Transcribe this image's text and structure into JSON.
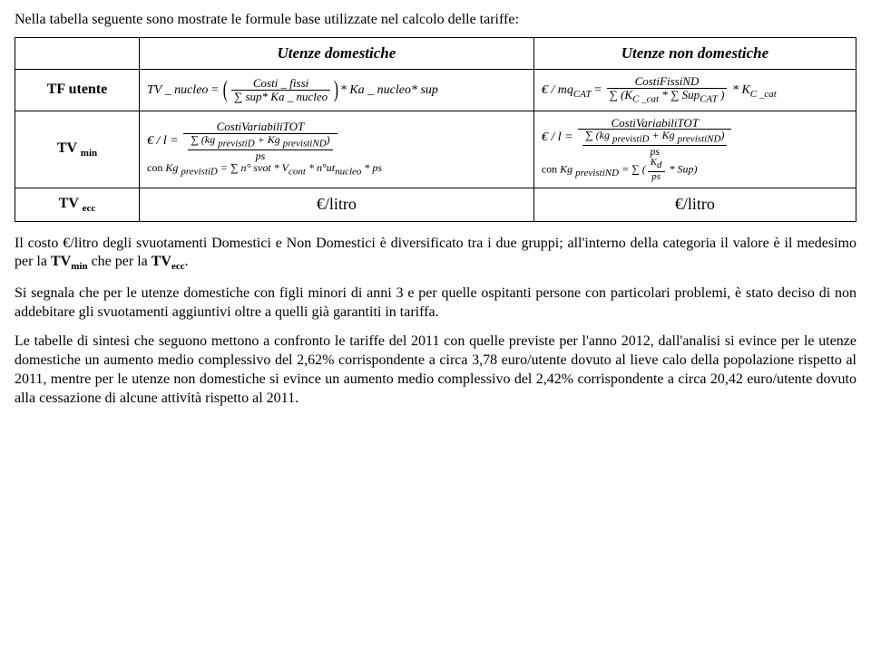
{
  "intro": "Nella tabella seguente sono mostrate le formule base utilizzate nel calcolo delle tariffe:",
  "table": {
    "col1_header": "Utenze domestiche",
    "col2_header": "Utenze non domestiche",
    "rows": {
      "r1_label": "TF utente",
      "r2_label_main": "TV",
      "r2_label_sub": "min",
      "r3_label_main": "TV",
      "r3_label_sub": "ecc",
      "tf_dom": {
        "lhs": "TV _ nucleo",
        "num": "Costi _ fissi",
        "den": "∑ sup* Ka _ nucleo",
        "tail": "* Ka _ nucleo* sup"
      },
      "tf_nd": {
        "lhs": "€ / mq",
        "lhs_sub": "CAT",
        "num": "CostiFissiND",
        "den_a": "∑ (K",
        "den_a_sub": "C _cat",
        "den_b": " * ∑ Sup",
        "den_b_sub": "CAT",
        "den_c": " )",
        "tail": " * K",
        "tail_sub": "C _cat"
      },
      "tv_dom": {
        "lhs": "€ / l =",
        "num": "CostiVariabiliTOT",
        "den": "∑ (kg ",
        "den_sub1": "previstiD",
        "den_mid": " + Kg ",
        "den_sub2": "previstiND",
        "den_end": ")",
        "ps": "ps",
        "con": "con ",
        "kg": "Kg ",
        "kg_sub": "previstiD",
        "eq": " = ∑ n° svot * V",
        "vcont_sub": "cont",
        "tail": " * n°ut",
        "tail_sub": "nucleo",
        "tail_end": " * ps"
      },
      "tv_nd": {
        "lhs": "€ / l =",
        "num": "CostiVariabiliTOT",
        "den": "∑ (kg ",
        "den_sub1": "previstiD",
        "den_mid": " + Kg ",
        "den_sub2": "previstiND",
        "den_end": ")",
        "ps": "ps",
        "con": "con ",
        "kg": "Kg ",
        "kg_sub": "previstiND",
        "eq": " = ∑ (",
        "kd": "K",
        "kd_sub": "d",
        "over": "ps",
        "tail": " * Sup)"
      },
      "litro": "€/litro"
    }
  },
  "p1a": "Il costo €/litro degli svuotamenti Domestici e Non Domestici è diversificato tra i due gruppi; all'interno della categoria il valore è il medesimo per la ",
  "p1_tv1": "TV",
  "p1_tv1_sub": "min",
  "p1b": " che per la ",
  "p1_tv2": "TV",
  "p1_tv2_sub": "ecc",
  "p1c": ".",
  "p2": "Si segnala che per le utenze domestiche con figli minori di anni 3 e per quelle ospitanti persone con particolari problemi, è stato deciso di non addebitare gli svuotamenti aggiuntivi oltre a quelli già garantiti in tariffa.",
  "p3": "Le tabelle di sintesi che seguono mettono a confronto le tariffe del 2011 con quelle previste per l'anno 2012, dall'analisi si evince per le utenze domestiche un aumento medio complessivo del 2,62% corrispondente a circa 3,78 euro/utente dovuto al lieve calo della popolazione rispetto al 2011, mentre per le utenze non domestiche si evince un aumento medio complessivo del 2,42% corrispondente a circa 20,42 euro/utente dovuto alla cessazione di alcune attività rispetto al 2011."
}
